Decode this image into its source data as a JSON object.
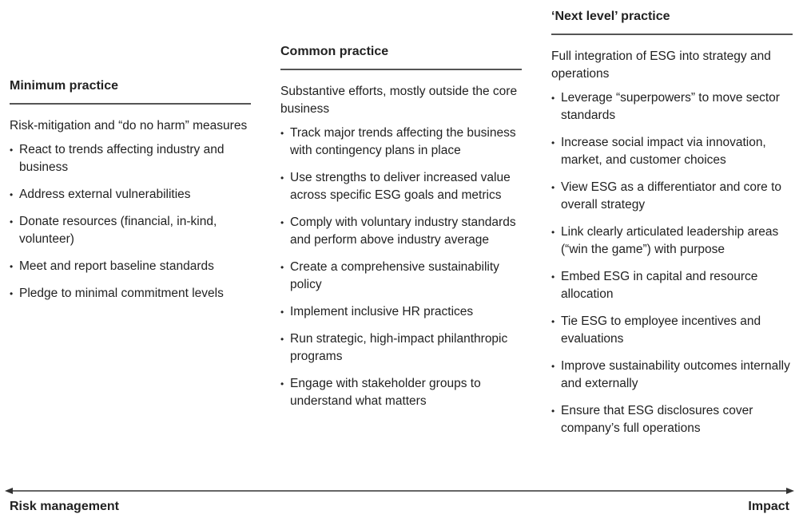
{
  "columns": [
    {
      "heading": "Minimum practice",
      "summary": "Risk-mitigation and “do no harm” measures",
      "items": [
        "React to trends affecting industry and business",
        "Address external vulnerabilities",
        "Donate resources (financial, in-kind, volunteer)",
        "Meet and report baseline standards",
        "Pledge to minimal commitment levels"
      ]
    },
    {
      "heading": "Common practice",
      "summary": "Substantive efforts, mostly outside the core business",
      "items": [
        "Track major trends affecting the business with contingency plans in place",
        "Use strengths to deliver increased value across specific ESG goals and metrics",
        "Comply with voluntary industry standards and perform above industry average",
        "Create a comprehensive sustainability policy",
        "Implement inclusive HR practices",
        "Run strategic, high-impact philanthropic programs",
        "Engage with stakeholder groups to understand what matters"
      ]
    },
    {
      "heading": "‘Next level’ practice",
      "summary": "Full integration of ESG into strategy and operations",
      "items": [
        "Leverage “superpowers” to move sector standards",
        "Increase social impact via innovation, market, and customer choices",
        "View ESG as a differentiator and core to overall strategy",
        "Link clearly articulated leadership areas (“win the game”) with purpose",
        "Embed ESG in capital and resource allocation",
        "Tie ESG to employee incentives and evaluations",
        "Improve sustainability outcomes internally and externally",
        "Ensure that ESG disclosures cover company’s full operations"
      ]
    }
  ],
  "axis": {
    "left": "Risk management",
    "right": "Impact"
  }
}
